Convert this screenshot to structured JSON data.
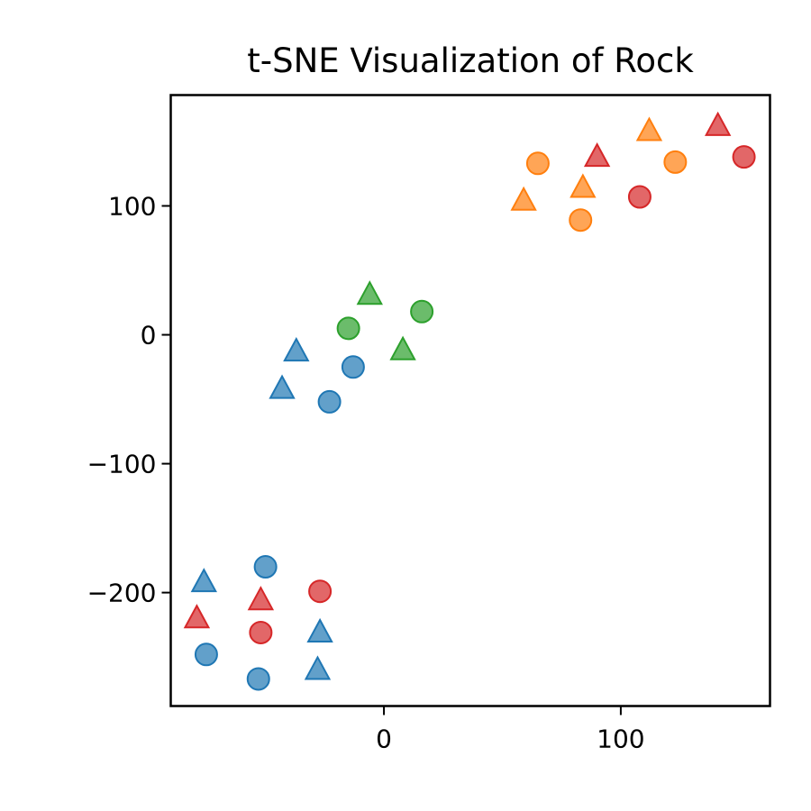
{
  "chart_data": {
    "type": "scatter",
    "title": "t-SNE Visualization of Rock",
    "xlabel": "",
    "ylabel": "",
    "xlim": [
      -90,
      163
    ],
    "ylim": [
      -288,
      186
    ],
    "xticks": [
      0,
      100
    ],
    "yticks": [
      100,
      0,
      -100,
      -200
    ],
    "grid": false,
    "legend": "none",
    "colors": {
      "blue": "#1f77b4",
      "orange": "#ff7f0e",
      "green": "#2ca02c",
      "red": "#d62728"
    },
    "series": [
      {
        "color": "#1f77b4",
        "points": [
          {
            "x": -50,
            "y": -180,
            "marker": "circle"
          },
          {
            "x": -75,
            "y": -248,
            "marker": "circle"
          },
          {
            "x": -53,
            "y": -267,
            "marker": "circle"
          },
          {
            "x": -76,
            "y": -192,
            "marker": "triangle"
          },
          {
            "x": -27,
            "y": -231,
            "marker": "triangle"
          },
          {
            "x": -28,
            "y": -260,
            "marker": "triangle"
          },
          {
            "x": -13,
            "y": -25,
            "marker": "circle"
          },
          {
            "x": -23,
            "y": -52,
            "marker": "circle"
          },
          {
            "x": -37,
            "y": -13,
            "marker": "triangle"
          },
          {
            "x": -43,
            "y": -42,
            "marker": "triangle"
          }
        ]
      },
      {
        "color": "#ff7f0e",
        "points": [
          {
            "x": 65,
            "y": 133,
            "marker": "circle"
          },
          {
            "x": 83,
            "y": 89,
            "marker": "circle"
          },
          {
            "x": 123,
            "y": 134,
            "marker": "circle"
          },
          {
            "x": 59,
            "y": 104,
            "marker": "triangle"
          },
          {
            "x": 84,
            "y": 114,
            "marker": "triangle"
          },
          {
            "x": 112,
            "y": 158,
            "marker": "triangle"
          }
        ]
      },
      {
        "color": "#2ca02c",
        "points": [
          {
            "x": -15,
            "y": 5,
            "marker": "circle"
          },
          {
            "x": 16,
            "y": 18,
            "marker": "circle"
          },
          {
            "x": -6,
            "y": 31,
            "marker": "triangle"
          },
          {
            "x": 8,
            "y": -12,
            "marker": "triangle"
          }
        ]
      },
      {
        "color": "#d62728",
        "points": [
          {
            "x": -27,
            "y": -199,
            "marker": "circle"
          },
          {
            "x": -52,
            "y": -231,
            "marker": "circle"
          },
          {
            "x": 108,
            "y": 107,
            "marker": "circle"
          },
          {
            "x": 152,
            "y": 138,
            "marker": "circle"
          },
          {
            "x": -79,
            "y": -220,
            "marker": "triangle"
          },
          {
            "x": -52,
            "y": -206,
            "marker": "triangle"
          },
          {
            "x": 90,
            "y": 138,
            "marker": "triangle"
          },
          {
            "x": 141,
            "y": 162,
            "marker": "triangle"
          }
        ]
      }
    ]
  }
}
